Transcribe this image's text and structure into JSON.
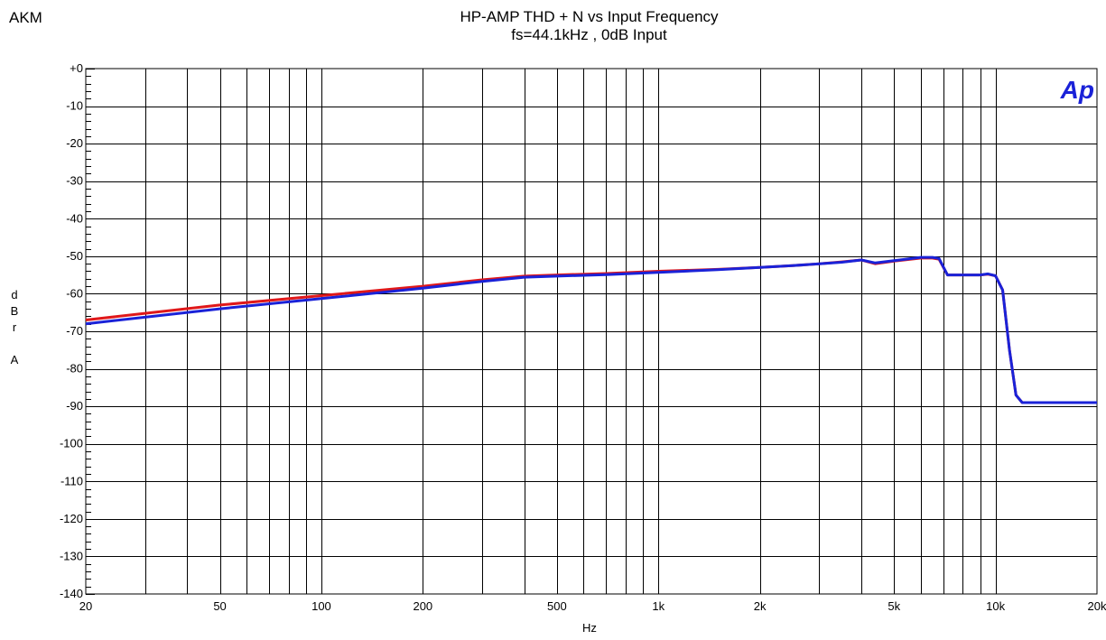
{
  "header": {
    "company": "AKM",
    "title_line1": "HP-AMP  THD + N  vs  Input Frequency",
    "title_line2": "fs=44.1kHz , 0dB Input"
  },
  "logo_text": "Ap",
  "chart_data": {
    "type": "line",
    "title": "HP-AMP  THD + N  vs  Input Frequency",
    "subtitle": "fs=44.1kHz , 0dB Input",
    "xlabel": "Hz",
    "ylabel": [
      "d",
      "B",
      "r",
      "",
      "A"
    ],
    "x_scale": "log",
    "xlim": [
      20,
      20000
    ],
    "ylim": [
      -140,
      0
    ],
    "grid": true,
    "x_ticks": [
      {
        "v": 20,
        "label": "20"
      },
      {
        "v": 50,
        "label": "50"
      },
      {
        "v": 100,
        "label": "100"
      },
      {
        "v": 200,
        "label": "200"
      },
      {
        "v": 500,
        "label": "500"
      },
      {
        "v": 1000,
        "label": "1k"
      },
      {
        "v": 2000,
        "label": "2k"
      },
      {
        "v": 5000,
        "label": "5k"
      },
      {
        "v": 10000,
        "label": "10k"
      },
      {
        "v": 20000,
        "label": "20k"
      }
    ],
    "y_ticks": [
      {
        "v": 0,
        "label": "+0"
      },
      {
        "v": -10,
        "label": "-10"
      },
      {
        "v": -20,
        "label": "-20"
      },
      {
        "v": -30,
        "label": "-30"
      },
      {
        "v": -40,
        "label": "-40"
      },
      {
        "v": -50,
        "label": "-50"
      },
      {
        "v": -60,
        "label": "-60"
      },
      {
        "v": -70,
        "label": "-70"
      },
      {
        "v": -80,
        "label": "-80"
      },
      {
        "v": -90,
        "label": "-90"
      },
      {
        "v": -100,
        "label": "-100"
      },
      {
        "v": -110,
        "label": "-110"
      },
      {
        "v": -120,
        "label": "-120"
      },
      {
        "v": -130,
        "label": "-130"
      },
      {
        "v": -140,
        "label": "-140"
      }
    ],
    "series": [
      {
        "color": "#e0181a",
        "x": [
          20,
          50,
          100,
          200,
          300,
          400,
          500,
          700,
          1000,
          1500,
          2000,
          2500,
          3000,
          3500,
          4000,
          4400,
          5000,
          6000,
          6500,
          6800,
          7200,
          8000,
          9000,
          9500,
          10000,
          10500,
          11000,
          11500,
          12000,
          15000,
          20000
        ],
        "y": [
          -67,
          -63,
          -60.5,
          -58,
          -56.3,
          -55.3,
          -55,
          -54.6,
          -54,
          -53.5,
          -53,
          -52.5,
          -52,
          -51.5,
          -51,
          -52,
          -51.3,
          -50.5,
          -50.5,
          -50.8,
          -55,
          -55,
          -55,
          -54.8,
          -55.2,
          -59,
          -75,
          -87,
          -89,
          -89,
          -89
        ]
      },
      {
        "color": "#1a22d8",
        "x": [
          20,
          50,
          100,
          200,
          300,
          400,
          500,
          700,
          1000,
          1500,
          2000,
          2500,
          3000,
          3500,
          4000,
          4400,
          5000,
          6000,
          6500,
          6800,
          7200,
          8000,
          9000,
          9500,
          10000,
          10500,
          11000,
          11500,
          12000,
          15000,
          20000
        ],
        "y": [
          -68,
          -64,
          -61.3,
          -58.5,
          -56.7,
          -55.6,
          -55.3,
          -54.9,
          -54.3,
          -53.6,
          -53,
          -52.5,
          -52,
          -51.6,
          -51,
          -51.8,
          -51.2,
          -50.3,
          -50.3,
          -50.6,
          -55,
          -55,
          -55,
          -54.7,
          -55.2,
          -59,
          -75,
          -87,
          -89,
          -89,
          -89
        ]
      }
    ]
  }
}
